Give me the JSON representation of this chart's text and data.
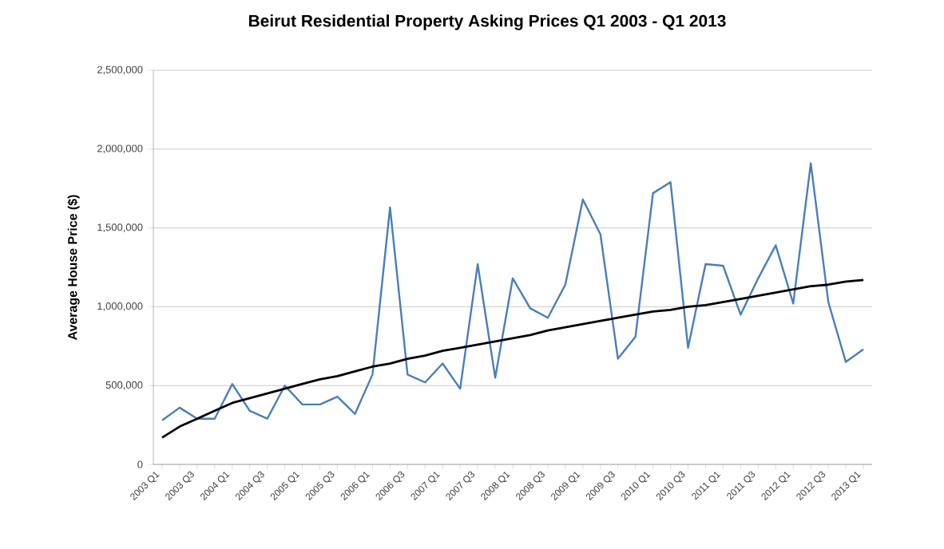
{
  "chart_data": {
    "type": "line",
    "title": "Beirut Residential Property Asking Prices Q1 2003 - Q1 2013",
    "ylabel": "Average House Price ($)",
    "categories": [
      "2003 Q1",
      null,
      "2003 Q3",
      null,
      "2004 Q1",
      null,
      "2004 Q3",
      null,
      "2005 Q1",
      null,
      "2005 Q3",
      null,
      "2006 Q1",
      null,
      "2006 Q3",
      null,
      "2007 Q1",
      null,
      "2007 Q3",
      null,
      "2008 Q1",
      null,
      "2008 Q3",
      null,
      "2009 Q1",
      null,
      "2009 Q3",
      null,
      "2010 Q1",
      null,
      "2010 Q3",
      null,
      "2011 Q1",
      null,
      "2011 Q3",
      null,
      "2012 Q1",
      null,
      "2012 Q3",
      null,
      "2013 Q1"
    ],
    "series": [
      {
        "color": "#4a7ebb",
        "values": [
          280000,
          360000,
          290000,
          290000,
          510000,
          340000,
          290000,
          500000,
          380000,
          380000,
          430000,
          320000,
          570000,
          1630000,
          570000,
          520000,
          640000,
          480000,
          1270000,
          550000,
          1180000,
          990000,
          930000,
          1140000,
          1680000,
          1460000,
          670000,
          810000,
          1720000,
          1790000,
          740000,
          1270000,
          1260000,
          950000,
          1180000,
          1390000,
          1020000,
          1910000,
          1030000,
          650000,
          730000
        ]
      },
      {
        "color": "#000000",
        "values": [
          170000,
          240000,
          290000,
          340000,
          390000,
          420000,
          450000,
          480000,
          510000,
          540000,
          560000,
          590000,
          620000,
          640000,
          670000,
          690000,
          720000,
          740000,
          760000,
          780000,
          800000,
          820000,
          850000,
          870000,
          890000,
          910000,
          930000,
          950000,
          970000,
          980000,
          1000000,
          1010000,
          1030000,
          1050000,
          1070000,
          1090000,
          1110000,
          1130000,
          1140000,
          1160000,
          1170000
        ]
      }
    ],
    "ylim": [
      0,
      2500000
    ],
    "yticks": [
      {
        "value": 0,
        "label": "0"
      },
      {
        "value": 500000,
        "label": "500,000"
      },
      {
        "value": 1000000,
        "label": "1,000,000"
      },
      {
        "value": 1500000,
        "label": "1,500,000"
      },
      {
        "value": 2000000,
        "label": "2,000,000"
      },
      {
        "value": 2500000,
        "label": "2,500,000"
      }
    ],
    "grid": "y",
    "marker": "none",
    "line_style": "solid"
  }
}
